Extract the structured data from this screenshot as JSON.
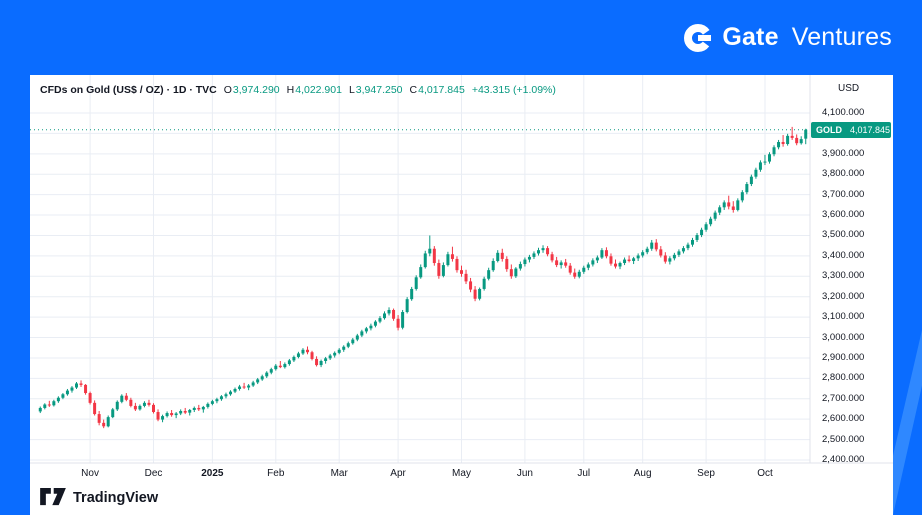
{
  "page": {
    "brand": {
      "gate": "Gate",
      "ventures": "Ventures"
    }
  },
  "colors": {
    "up": "#089981",
    "down": "#f23645",
    "background_blue": "#0a6cff",
    "accent_light_blue": "#4ea0ff",
    "grid": "#e9edf4",
    "axis_line": "#e0e3eb",
    "axis_text": "#131722"
  },
  "chart": {
    "header": {
      "title": "CFDs on Gold (US$ / OZ) · 1D · TVC",
      "o_label": "O",
      "o_value": "3,974.290",
      "h_label": "H",
      "h_value": "4,022.901",
      "l_label": "L",
      "l_value": "3,947.250",
      "c_label": "C",
      "c_value": "4,017.845",
      "change": "+43.315 (+1.09%)"
    },
    "axis_currency": "USD",
    "badge": {
      "symbol": "GOLD",
      "price": "4,017.845"
    },
    "footer": {
      "brand": "TradingView"
    }
  },
  "chart_data": {
    "type": "candlestick",
    "title": "CFDs on Gold (US$ / OZ) · 1D · TVC",
    "symbol": "GOLD",
    "last_price": 4017.845,
    "ohlc_fields": [
      "open",
      "high",
      "low",
      "close"
    ],
    "y_axis": {
      "currency": "USD",
      "min": 2400,
      "max": 4100,
      "tick_step": 100,
      "tick_labels": [
        "4,100.000",
        "4,000.000",
        "3,900.000",
        "3,800.000",
        "3,700.000",
        "3,600.000",
        "3,500.000",
        "3,400.000",
        "3,300.000",
        "3,200.000",
        "3,100.000",
        "3,000.000",
        "2,900.000",
        "2,800.000",
        "2,700.000",
        "2,600.000",
        "2,500.000",
        "2,400.000"
      ]
    },
    "x_tick_labels": [
      {
        "index": 11,
        "label": "Nov"
      },
      {
        "index": 25,
        "label": "Dec"
      },
      {
        "index": 38,
        "label": "2025",
        "bold": true
      },
      {
        "index": 52,
        "label": "Feb"
      },
      {
        "index": 66,
        "label": "Mar"
      },
      {
        "index": 79,
        "label": "Apr"
      },
      {
        "index": 93,
        "label": "May"
      },
      {
        "index": 107,
        "label": "Jun"
      },
      {
        "index": 120,
        "label": "Jul"
      },
      {
        "index": 133,
        "label": "Aug"
      },
      {
        "index": 147,
        "label": "Sep"
      },
      {
        "index": 160,
        "label": "Oct"
      }
    ],
    "candles": [
      [
        2638,
        2662,
        2630,
        2655
      ],
      [
        2655,
        2678,
        2648,
        2672
      ],
      [
        2672,
        2690,
        2660,
        2668
      ],
      [
        2668,
        2695,
        2662,
        2688
      ],
      [
        2688,
        2712,
        2680,
        2705
      ],
      [
        2705,
        2728,
        2698,
        2722
      ],
      [
        2722,
        2748,
        2715,
        2740
      ],
      [
        2740,
        2762,
        2730,
        2755
      ],
      [
        2755,
        2782,
        2748,
        2775
      ],
      [
        2775,
        2790,
        2758,
        2768
      ],
      [
        2768,
        2772,
        2720,
        2728
      ],
      [
        2728,
        2735,
        2672,
        2680
      ],
      [
        2680,
        2692,
        2618,
        2625
      ],
      [
        2625,
        2640,
        2570,
        2582
      ],
      [
        2582,
        2598,
        2556,
        2565
      ],
      [
        2565,
        2618,
        2560,
        2610
      ],
      [
        2610,
        2655,
        2605,
        2648
      ],
      [
        2648,
        2692,
        2640,
        2685
      ],
      [
        2685,
        2722,
        2678,
        2715
      ],
      [
        2715,
        2728,
        2688,
        2695
      ],
      [
        2695,
        2705,
        2658,
        2665
      ],
      [
        2665,
        2680,
        2640,
        2648
      ],
      [
        2648,
        2672,
        2642,
        2665
      ],
      [
        2665,
        2688,
        2658,
        2680
      ],
      [
        2680,
        2695,
        2662,
        2670
      ],
      [
        2670,
        2678,
        2628,
        2635
      ],
      [
        2635,
        2648,
        2590,
        2598
      ],
      [
        2598,
        2622,
        2585,
        2615
      ],
      [
        2615,
        2638,
        2608,
        2630
      ],
      [
        2630,
        2645,
        2612,
        2620
      ],
      [
        2620,
        2635,
        2605,
        2628
      ],
      [
        2628,
        2648,
        2620,
        2640
      ],
      [
        2640,
        2655,
        2625,
        2632
      ],
      [
        2632,
        2650,
        2618,
        2645
      ],
      [
        2645,
        2662,
        2635,
        2655
      ],
      [
        2655,
        2670,
        2640,
        2648
      ],
      [
        2648,
        2665,
        2632,
        2660
      ],
      [
        2660,
        2682,
        2652,
        2675
      ],
      [
        2675,
        2695,
        2668,
        2688
      ],
      [
        2688,
        2705,
        2678,
        2698
      ],
      [
        2698,
        2718,
        2690,
        2712
      ],
      [
        2712,
        2730,
        2702,
        2722
      ],
      [
        2722,
        2742,
        2715,
        2735
      ],
      [
        2735,
        2755,
        2728,
        2748
      ],
      [
        2748,
        2768,
        2740,
        2760
      ],
      [
        2760,
        2778,
        2748,
        2755
      ],
      [
        2755,
        2772,
        2742,
        2765
      ],
      [
        2765,
        2788,
        2758,
        2780
      ],
      [
        2780,
        2802,
        2772,
        2795
      ],
      [
        2795,
        2818,
        2788,
        2810
      ],
      [
        2810,
        2835,
        2802,
        2828
      ],
      [
        2828,
        2852,
        2820,
        2845
      ],
      [
        2845,
        2870,
        2838,
        2862
      ],
      [
        2862,
        2885,
        2850,
        2855
      ],
      [
        2855,
        2878,
        2848,
        2870
      ],
      [
        2870,
        2895,
        2862,
        2888
      ],
      [
        2888,
        2912,
        2880,
        2905
      ],
      [
        2905,
        2930,
        2898,
        2922
      ],
      [
        2922,
        2948,
        2915,
        2940
      ],
      [
        2940,
        2956,
        2918,
        2928
      ],
      [
        2928,
        2935,
        2888,
        2895
      ],
      [
        2895,
        2908,
        2858,
        2865
      ],
      [
        2865,
        2892,
        2855,
        2885
      ],
      [
        2885,
        2905,
        2872,
        2898
      ],
      [
        2898,
        2920,
        2890,
        2912
      ],
      [
        2912,
        2932,
        2902,
        2925
      ],
      [
        2925,
        2948,
        2918,
        2940
      ],
      [
        2940,
        2962,
        2930,
        2955
      ],
      [
        2955,
        2980,
        2948,
        2972
      ],
      [
        2972,
        2998,
        2965,
        2990
      ],
      [
        2990,
        3018,
        2982,
        3010
      ],
      [
        3010,
        3038,
        3002,
        3030
      ],
      [
        3030,
        3052,
        3020,
        3045
      ],
      [
        3045,
        3068,
        3035,
        3058
      ],
      [
        3058,
        3085,
        3050,
        3078
      ],
      [
        3078,
        3105,
        3070,
        3095
      ],
      [
        3095,
        3128,
        3088,
        3118
      ],
      [
        3118,
        3148,
        3108,
        3135
      ],
      [
        3135,
        3142,
        3082,
        3092
      ],
      [
        3092,
        3110,
        3035,
        3048
      ],
      [
        3048,
        3135,
        3040,
        3125
      ],
      [
        3125,
        3198,
        3118,
        3188
      ],
      [
        3188,
        3248,
        3180,
        3238
      ],
      [
        3238,
        3305,
        3230,
        3295
      ],
      [
        3295,
        3358,
        3288,
        3345
      ],
      [
        3345,
        3425,
        3338,
        3412
      ],
      [
        3412,
        3500,
        3398,
        3435
      ],
      [
        3435,
        3448,
        3352,
        3365
      ],
      [
        3365,
        3382,
        3288,
        3302
      ],
      [
        3302,
        3368,
        3295,
        3355
      ],
      [
        3355,
        3420,
        3348,
        3408
      ],
      [
        3408,
        3445,
        3372,
        3385
      ],
      [
        3385,
        3398,
        3318,
        3330
      ],
      [
        3330,
        3352,
        3298,
        3312
      ],
      [
        3312,
        3332,
        3262,
        3275
      ],
      [
        3275,
        3292,
        3222,
        3235
      ],
      [
        3235,
        3252,
        3178,
        3190
      ],
      [
        3190,
        3245,
        3182,
        3238
      ],
      [
        3238,
        3298,
        3230,
        3288
      ],
      [
        3288,
        3342,
        3280,
        3330
      ],
      [
        3330,
        3388,
        3322,
        3375
      ],
      [
        3375,
        3428,
        3368,
        3415
      ],
      [
        3415,
        3435,
        3372,
        3385
      ],
      [
        3385,
        3398,
        3322,
        3335
      ],
      [
        3335,
        3358,
        3288,
        3300
      ],
      [
        3300,
        3345,
        3292,
        3338
      ],
      [
        3338,
        3372,
        3328,
        3360
      ],
      [
        3360,
        3392,
        3348,
        3382
      ],
      [
        3382,
        3405,
        3368,
        3395
      ],
      [
        3395,
        3422,
        3385,
        3412
      ],
      [
        3412,
        3440,
        3402,
        3428
      ],
      [
        3428,
        3452,
        3415,
        3438
      ],
      [
        3438,
        3448,
        3398,
        3408
      ],
      [
        3408,
        3420,
        3368,
        3378
      ],
      [
        3378,
        3395,
        3345,
        3355
      ],
      [
        3355,
        3378,
        3338,
        3368
      ],
      [
        3368,
        3385,
        3342,
        3352
      ],
      [
        3352,
        3365,
        3308,
        3318
      ],
      [
        3318,
        3338,
        3288,
        3298
      ],
      [
        3298,
        3332,
        3290,
        3322
      ],
      [
        3322,
        3352,
        3312,
        3342
      ],
      [
        3342,
        3368,
        3330,
        3358
      ],
      [
        3358,
        3388,
        3348,
        3378
      ],
      [
        3378,
        3402,
        3365,
        3392
      ],
      [
        3392,
        3438,
        3385,
        3428
      ],
      [
        3428,
        3442,
        3388,
        3398
      ],
      [
        3398,
        3412,
        3352,
        3362
      ],
      [
        3362,
        3382,
        3338,
        3348
      ],
      [
        3348,
        3372,
        3335,
        3365
      ],
      [
        3365,
        3392,
        3355,
        3382
      ],
      [
        3382,
        3402,
        3368,
        3375
      ],
      [
        3375,
        3395,
        3360,
        3388
      ],
      [
        3388,
        3412,
        3375,
        3402
      ],
      [
        3402,
        3428,
        3392,
        3418
      ],
      [
        3418,
        3445,
        3408,
        3435
      ],
      [
        3435,
        3478,
        3425,
        3465
      ],
      [
        3465,
        3482,
        3422,
        3432
      ],
      [
        3432,
        3448,
        3392,
        3402
      ],
      [
        3402,
        3418,
        3362,
        3372
      ],
      [
        3372,
        3398,
        3358,
        3388
      ],
      [
        3388,
        3415,
        3378,
        3405
      ],
      [
        3405,
        3432,
        3395,
        3422
      ],
      [
        3422,
        3448,
        3412,
        3438
      ],
      [
        3438,
        3465,
        3428,
        3455
      ],
      [
        3455,
        3488,
        3445,
        3478
      ],
      [
        3478,
        3512,
        3468,
        3502
      ],
      [
        3502,
        3538,
        3492,
        3528
      ],
      [
        3528,
        3565,
        3518,
        3555
      ],
      [
        3555,
        3592,
        3545,
        3582
      ],
      [
        3582,
        3622,
        3572,
        3612
      ],
      [
        3612,
        3648,
        3600,
        3638
      ],
      [
        3638,
        3672,
        3625,
        3662
      ],
      [
        3662,
        3695,
        3628,
        3642
      ],
      [
        3642,
        3668,
        3612,
        3625
      ],
      [
        3625,
        3682,
        3618,
        3672
      ],
      [
        3672,
        3722,
        3662,
        3712
      ],
      [
        3712,
        3762,
        3702,
        3752
      ],
      [
        3752,
        3798,
        3742,
        3788
      ],
      [
        3788,
        3832,
        3778,
        3822
      ],
      [
        3822,
        3868,
        3812,
        3858
      ],
      [
        3858,
        3895,
        3845,
        3862
      ],
      [
        3862,
        3908,
        3852,
        3898
      ],
      [
        3898,
        3942,
        3888,
        3932
      ],
      [
        3932,
        3968,
        3922,
        3958
      ],
      [
        3958,
        3992,
        3935,
        3948
      ],
      [
        3948,
        3998,
        3940,
        3988
      ],
      [
        3988,
        4032,
        3968,
        3978
      ],
      [
        3978,
        3995,
        3942,
        3952
      ],
      [
        3952,
        3986,
        3945,
        3972
      ],
      [
        3974.29,
        4022.901,
        3947.25,
        4017.845
      ]
    ]
  }
}
